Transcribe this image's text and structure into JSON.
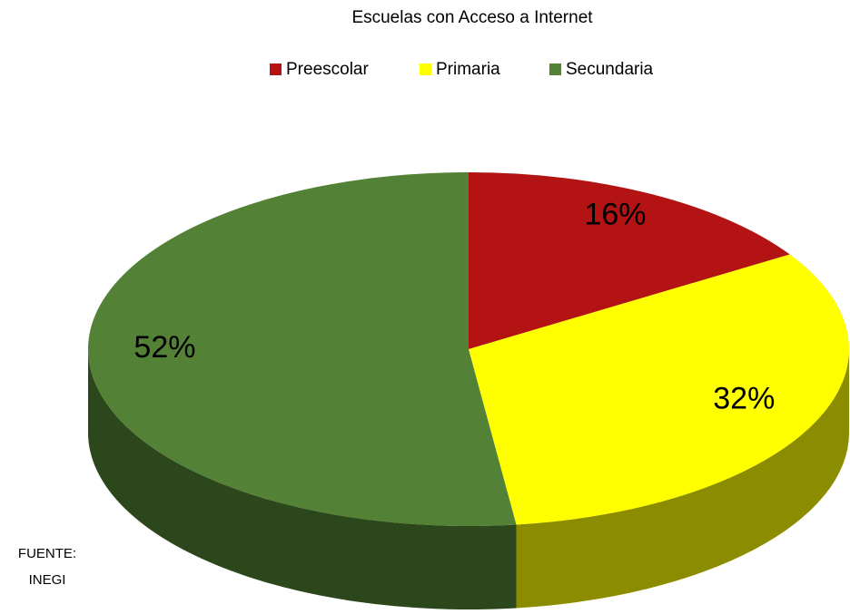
{
  "chart_data": {
    "type": "pie",
    "title": "Escuelas con Acceso a Internet",
    "categories": [
      "Preescolar",
      "Primaria",
      "Secundaria"
    ],
    "values": [
      16,
      32,
      52
    ],
    "value_labels": [
      "16%",
      "32%",
      "52%"
    ],
    "colors": [
      "#b31312",
      "#ffff00",
      "#538135"
    ],
    "legend": "top",
    "annotations": [
      "FUENTE:",
      "INEGI"
    ]
  }
}
